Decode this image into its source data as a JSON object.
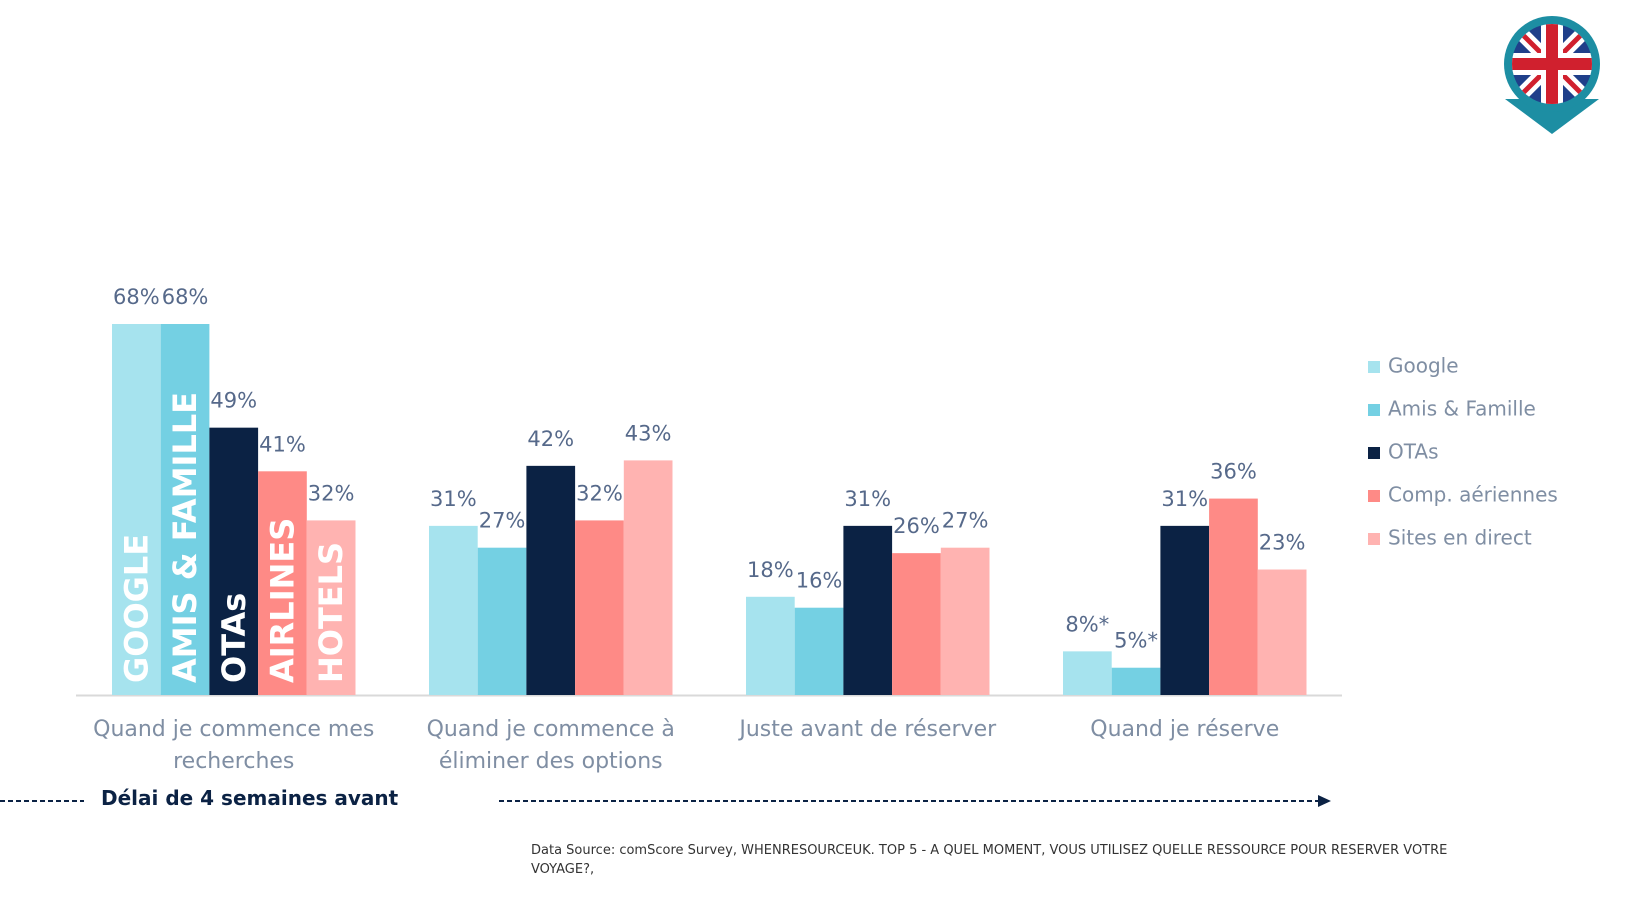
{
  "chart_data": {
    "type": "bar",
    "categories": [
      "Quand je commence mes recherches",
      "Quand je commence à éliminer des options",
      "Juste avant de réserver",
      "Quand je réserve"
    ],
    "series": [
      {
        "name": "Google",
        "color": "#a6e3ee",
        "values": [
          68,
          31,
          18,
          8
        ],
        "value_labels": [
          "68%",
          "31%",
          "18%",
          "8%*"
        ]
      },
      {
        "name": "Amis & Famille",
        "color": "#74d0e3",
        "values": [
          68,
          27,
          16,
          5
        ],
        "value_labels": [
          "68%",
          "27%",
          "16%",
          "5%*"
        ]
      },
      {
        "name": "OTAs",
        "color": "#0b2244",
        "values": [
          49,
          42,
          31,
          31
        ],
        "value_labels": [
          "49%",
          "42%",
          "31%",
          "31%"
        ]
      },
      {
        "name": "Comp. aériennes",
        "color": "#fe8a86",
        "values": [
          41,
          32,
          26,
          36
        ],
        "value_labels": [
          "41%",
          "32%",
          "26%",
          "36%"
        ]
      },
      {
        "name": "Sites en direct",
        "color": "#ffb3b1",
        "values": [
          32,
          43,
          27,
          23
        ],
        "value_labels": [
          "32%",
          "43%",
          "27%",
          "23%"
        ]
      }
    ],
    "inbar_labels": [
      "GOOGLE",
      "AMIS & FAMILLE",
      "OTAs",
      "AIRLINES",
      "HOTELS"
    ],
    "timeline_label": "Délai de 4 semaines avant",
    "source": "Data Source: comScore Survey, WHENRESOURCEUK. TOP 5 - A QUEL MOMENT, VOUS UTILISEZ QUELLE RESSOURCE POUR RESERVER VOTRE VOYAGE?,",
    "legend": "right"
  }
}
